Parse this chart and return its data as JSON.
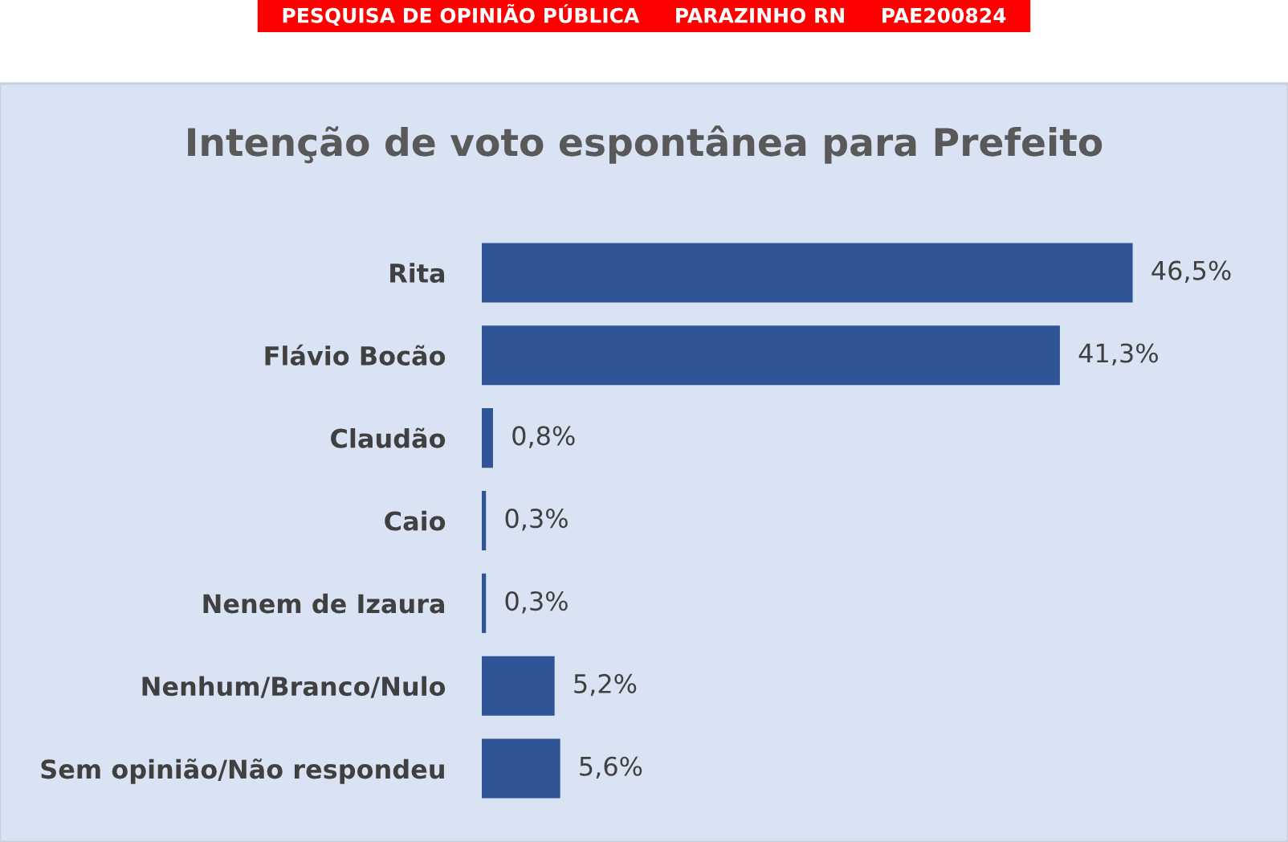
{
  "chart_data": {
    "type": "bar",
    "orientation": "horizontal",
    "title": "Intenção de voto espontânea para Prefeito",
    "annotations": [
      "PESQUISA DE OPINIÃO PÚBLICA     PARAZINHO RN     PAE200824"
    ],
    "categories": [
      "Rita",
      "Flávio Bocão",
      "Claudão",
      "Caio",
      "Nenem de Izaura",
      "Nenhum/Branco/Nulo",
      "Sem opinião/Não respondeu"
    ],
    "values": [
      46.5,
      41.3,
      0.8,
      0.3,
      0.3,
      5.2,
      5.6
    ],
    "value_labels": [
      "46,5%",
      "41,3%",
      "0,8%",
      "0,3%",
      "0,3%",
      "5,2%",
      "5,6%"
    ],
    "color": "#2f5597",
    "grid": false,
    "legend": false
  }
}
